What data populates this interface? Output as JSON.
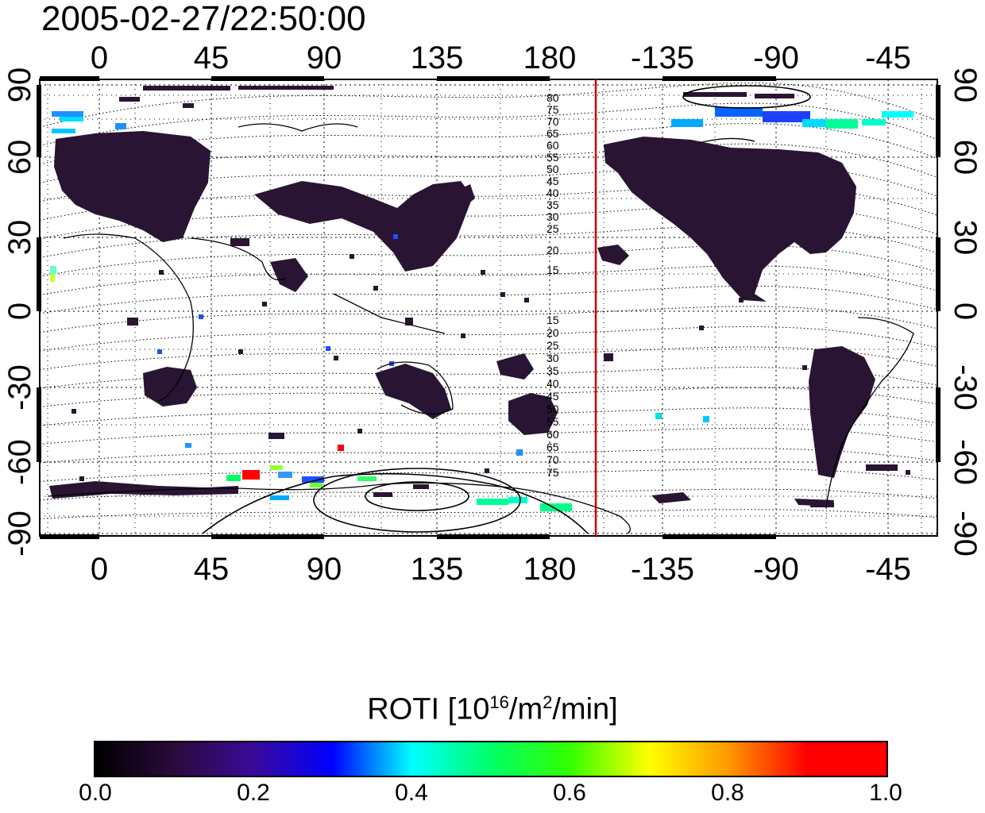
{
  "title": "2005-02-27/22:50:00",
  "map": {
    "top_axis_labels": [
      "0",
      "45",
      "90",
      "135",
      "180",
      "-135",
      "-90",
      "-45"
    ],
    "bottom_axis_labels": [
      "0",
      "45",
      "90",
      "135",
      "180",
      "-135",
      "-90",
      "-45"
    ],
    "left_axis_labels": [
      "90",
      "60",
      "30",
      "0",
      "-30",
      "-60",
      "-90"
    ],
    "right_axis_labels": [
      "90",
      "60",
      "30",
      "0",
      "-30",
      "-60",
      "-90"
    ],
    "contour_labels_north": [
      "80",
      "75",
      "70",
      "65",
      "60",
      "55",
      "50",
      "45",
      "40",
      "35",
      "30",
      "25",
      "20",
      "15"
    ],
    "contour_labels_south": [
      "15",
      "20",
      "25",
      "30",
      "35",
      "40",
      "45",
      "50",
      "55",
      "60",
      "65",
      "70",
      "75"
    ],
    "terminator_line_color": "#cc0000",
    "land_color": "#2a1433"
  },
  "colorbar": {
    "title_main": "ROTI  [10",
    "title_sup1": "16",
    "title_mid": "/m",
    "title_sup2": "2",
    "title_end": "/min]",
    "tick_labels": [
      "0.0",
      "0.2",
      "0.4",
      "0.6",
      "0.8",
      "1.0"
    ]
  }
}
